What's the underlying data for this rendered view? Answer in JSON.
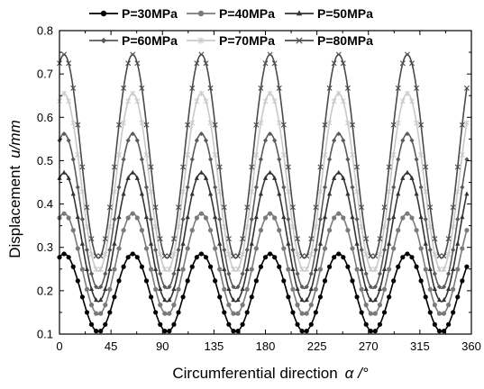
{
  "chart_data": {
    "type": "line",
    "xlabel": "Circumferential direction",
    "xlabel_symbol": "α /°",
    "ylabel": "Displacement",
    "ylabel_symbol": "u/mm",
    "xlim": [
      0,
      360
    ],
    "ylim": [
      0.1,
      0.8
    ],
    "x_ticks": [
      "0",
      "45",
      "90",
      "135",
      "180",
      "225",
      "270",
      "315",
      "360"
    ],
    "y_ticks": [
      "0.1",
      "0.2",
      "0.3",
      "0.4",
      "0.5",
      "0.6",
      "0.7",
      "0.8"
    ],
    "grid": false,
    "legend_position": "top",
    "period_deg": 60,
    "peak_angles_deg": [
      4,
      64,
      124,
      184,
      244,
      304
    ],
    "series": [
      {
        "name": "P=30MPa",
        "min": 0.105,
        "max": 0.285,
        "color": "#000000",
        "marker": "circle"
      },
      {
        "name": "P=40MPa",
        "min": 0.145,
        "max": 0.378,
        "color": "#7a7a7a",
        "marker": "circle"
      },
      {
        "name": "P=50MPa",
        "min": 0.175,
        "max": 0.472,
        "color": "#333333",
        "marker": "triangle"
      },
      {
        "name": "P=60MPa",
        "min": 0.205,
        "max": 0.562,
        "color": "#5a5a5a",
        "marker": "diamond"
      },
      {
        "name": "P=70MPa",
        "min": 0.245,
        "max": 0.655,
        "color": "#c9c9c9",
        "marker": "star"
      },
      {
        "name": "P=80MPa",
        "min": 0.275,
        "max": 0.745,
        "color": "#4a4a4a",
        "marker": "x"
      }
    ]
  }
}
